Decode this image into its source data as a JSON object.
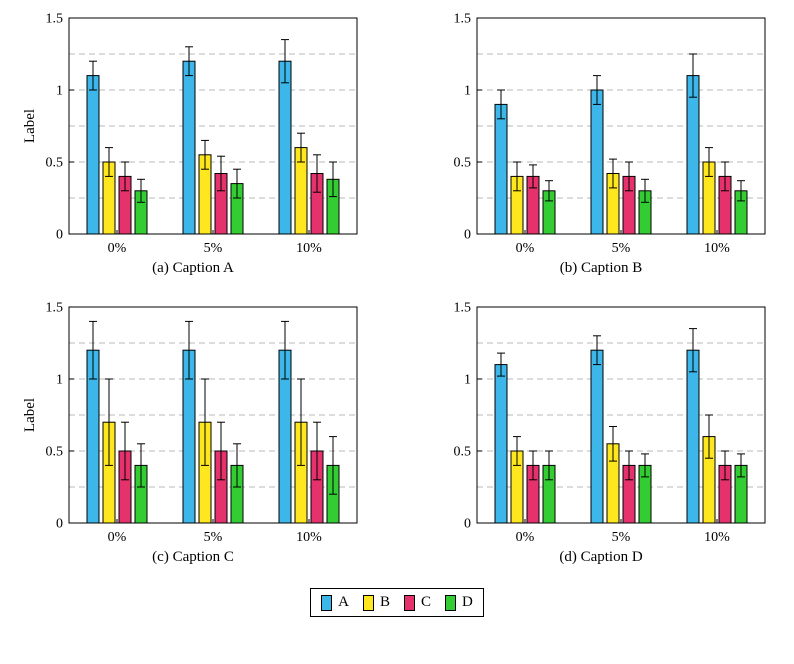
{
  "figure": {
    "background": "#ffffff"
  },
  "colors": {
    "A": "#3db7e9",
    "B": "#ffe71f",
    "C": "#e5326d",
    "D": "#33cc33",
    "grid": "#b8b8b8",
    "axis": "#000000"
  },
  "axis": {
    "ylabel": "Label",
    "ylim": [
      0,
      1.5
    ],
    "ytick_values": [
      0,
      0.5,
      1,
      1.5
    ],
    "ytick_labels": [
      "0",
      "0.5",
      "1",
      "1.5"
    ],
    "gridlines": [
      0.25,
      0.5,
      0.75,
      1,
      1.25
    ],
    "grid_style": "dashed-horizontal"
  },
  "legend": {
    "position": "bottom-center-shared",
    "entries": [
      {
        "label": "A",
        "color": "#3db7e9"
      },
      {
        "label": "B",
        "color": "#ffe71f"
      },
      {
        "label": "C",
        "color": "#e5326d"
      },
      {
        "label": "D",
        "color": "#33cc33"
      }
    ]
  },
  "chart_data": [
    {
      "id": "a",
      "type": "bar",
      "caption": "(a) Caption A",
      "ylabel": "Label",
      "categories": [
        "0%",
        "5%",
        "10%"
      ],
      "ylim": [
        0,
        1.5
      ],
      "series": [
        {
          "name": "A",
          "values": [
            1.1,
            1.2,
            1.2
          ],
          "errors": [
            0.1,
            0.1,
            0.15
          ]
        },
        {
          "name": "B",
          "values": [
            0.5,
            0.55,
            0.6
          ],
          "errors": [
            0.1,
            0.1,
            0.1
          ]
        },
        {
          "name": "C",
          "values": [
            0.4,
            0.42,
            0.42
          ],
          "errors": [
            0.1,
            0.12,
            0.13
          ]
        },
        {
          "name": "D",
          "values": [
            0.3,
            0.35,
            0.38
          ],
          "errors": [
            0.08,
            0.1,
            0.12
          ]
        }
      ]
    },
    {
      "id": "b",
      "type": "bar",
      "caption": "(b) Caption B",
      "ylabel": "",
      "categories": [
        "0%",
        "5%",
        "10%"
      ],
      "ylim": [
        0,
        1.5
      ],
      "series": [
        {
          "name": "A",
          "values": [
            0.9,
            1.0,
            1.1
          ],
          "errors": [
            0.1,
            0.1,
            0.15
          ]
        },
        {
          "name": "B",
          "values": [
            0.4,
            0.42,
            0.5
          ],
          "errors": [
            0.1,
            0.1,
            0.1
          ]
        },
        {
          "name": "C",
          "values": [
            0.4,
            0.4,
            0.4
          ],
          "errors": [
            0.08,
            0.1,
            0.1
          ]
        },
        {
          "name": "D",
          "values": [
            0.3,
            0.3,
            0.3
          ],
          "errors": [
            0.07,
            0.08,
            0.07
          ]
        }
      ]
    },
    {
      "id": "c",
      "type": "bar",
      "caption": "(c) Caption C",
      "ylabel": "Label",
      "categories": [
        "0%",
        "5%",
        "10%"
      ],
      "ylim": [
        0,
        1.5
      ],
      "series": [
        {
          "name": "A",
          "values": [
            1.2,
            1.2,
            1.2
          ],
          "errors": [
            0.2,
            0.2,
            0.2
          ]
        },
        {
          "name": "B",
          "values": [
            0.7,
            0.7,
            0.7
          ],
          "errors": [
            0.3,
            0.3,
            0.3
          ]
        },
        {
          "name": "C",
          "values": [
            0.5,
            0.5,
            0.5
          ],
          "errors": [
            0.2,
            0.2,
            0.2
          ]
        },
        {
          "name": "D",
          "values": [
            0.4,
            0.4,
            0.4
          ],
          "errors": [
            0.15,
            0.15,
            0.2
          ]
        }
      ]
    },
    {
      "id": "d",
      "type": "bar",
      "caption": "(d) Caption D",
      "ylabel": "",
      "categories": [
        "0%",
        "5%",
        "10%"
      ],
      "ylim": [
        0,
        1.5
      ],
      "series": [
        {
          "name": "A",
          "values": [
            1.1,
            1.2,
            1.2
          ],
          "errors": [
            0.08,
            0.1,
            0.15
          ]
        },
        {
          "name": "B",
          "values": [
            0.5,
            0.55,
            0.6
          ],
          "errors": [
            0.1,
            0.12,
            0.15
          ]
        },
        {
          "name": "C",
          "values": [
            0.4,
            0.4,
            0.4
          ],
          "errors": [
            0.1,
            0.1,
            0.1
          ]
        },
        {
          "name": "D",
          "values": [
            0.4,
            0.4,
            0.4
          ],
          "errors": [
            0.1,
            0.08,
            0.08
          ]
        }
      ]
    }
  ]
}
